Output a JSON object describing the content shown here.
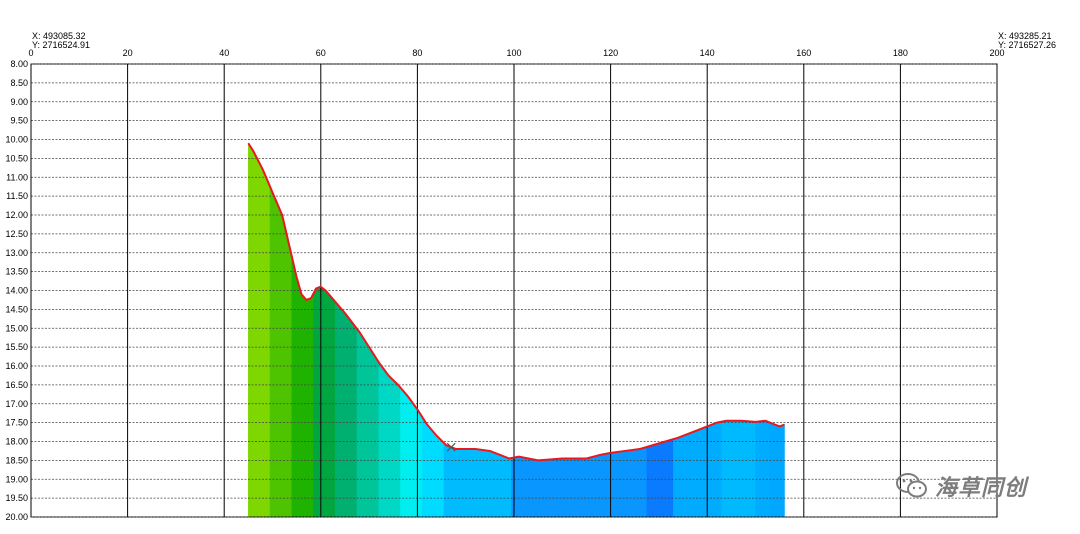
{
  "coords": {
    "left_x": "X: 493085.32",
    "left_y": "Y: 2716524.91",
    "right_x": "X: 493285.21",
    "right_y": "Y: 2716527.26"
  },
  "watermark": {
    "text": "海草同创",
    "icon": "wechat-icon"
  },
  "colors": {
    "grid": "#000000",
    "outline": "#e8191e",
    "marker": "#555555",
    "fill_ramp": [
      "#7ed700",
      "#4ec400",
      "#1fb300",
      "#00a640",
      "#00b070",
      "#00c49a",
      "#00d8c6",
      "#00eef0",
      "#00dcff",
      "#00bcff",
      "#0a96ff",
      "#0a7aff"
    ]
  },
  "chart_data": {
    "type": "area",
    "title": "",
    "xlabel": "",
    "ylabel": "",
    "xlim": [
      0,
      200
    ],
    "ylim": [
      8.0,
      20.0
    ],
    "y_inverted": true,
    "x_ticks": [
      "0",
      "20",
      "40",
      "60",
      "80",
      "100",
      "120",
      "140",
      "160",
      "180",
      "200"
    ],
    "y_ticks": [
      "8.00",
      "8.50",
      "9.00",
      "9.50",
      "10.00",
      "10.50",
      "11.00",
      "11.50",
      "12.00",
      "12.50",
      "13.00",
      "13.50",
      "14.00",
      "14.50",
      "15.00",
      "15.50",
      "16.00",
      "16.50",
      "17.00",
      "17.50",
      "18.00",
      "18.50",
      "19.00",
      "19.50",
      "20.00"
    ],
    "grid": true,
    "x_grid": "solid",
    "y_grid": "dashed",
    "series": [
      {
        "x": [
          45,
          46,
          48,
          50,
          52,
          54,
          55,
          56,
          57,
          58,
          59,
          60,
          61,
          62,
          65,
          68,
          70,
          72,
          74,
          76,
          78,
          80,
          82,
          84,
          86,
          88,
          90,
          92,
          95,
          97,
          99,
          101,
          103,
          105,
          110,
          115,
          118,
          120,
          123,
          126,
          130,
          134,
          137,
          140,
          142,
          144,
          147,
          150,
          152,
          154,
          155,
          156
        ],
        "y": [
          10.1,
          10.3,
          10.8,
          11.4,
          12.0,
          13.1,
          13.65,
          14.1,
          14.25,
          14.2,
          13.95,
          13.9,
          14.0,
          14.15,
          14.6,
          15.1,
          15.5,
          15.9,
          16.25,
          16.5,
          16.8,
          17.15,
          17.55,
          17.85,
          18.1,
          18.2,
          18.2,
          18.2,
          18.25,
          18.35,
          18.45,
          18.4,
          18.45,
          18.5,
          18.45,
          18.45,
          18.35,
          18.3,
          18.25,
          18.2,
          18.05,
          17.9,
          17.75,
          17.6,
          17.5,
          17.45,
          17.45,
          17.48,
          17.45,
          17.55,
          17.6,
          17.55
        ]
      }
    ],
    "marker": {
      "x": 87,
      "y": 18.15,
      "symbol": "x"
    }
  }
}
